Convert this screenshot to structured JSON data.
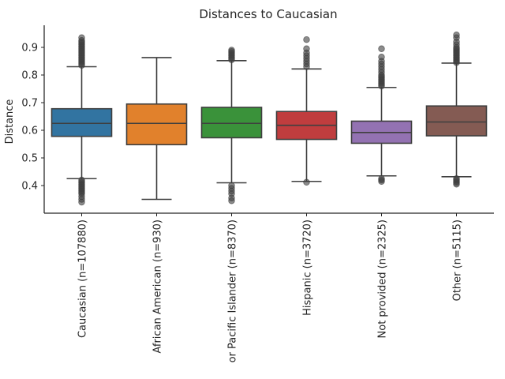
{
  "chart_data": {
    "type": "box",
    "title": "Distances to Caucasian",
    "xlabel": "",
    "ylabel": "Distance",
    "ylim": [
      0.3,
      0.98
    ],
    "yticks": [
      0.4,
      0.5,
      0.6,
      0.7,
      0.8,
      0.9
    ],
    "ytick_labels": [
      "0.4",
      "0.5",
      "0.6",
      "0.7",
      "0.8",
      "0.9"
    ],
    "grid": false,
    "legend": "none",
    "categories": [
      "Caucasian (n=107880)",
      "African American (n=930)",
      "or Pacific Islander (n=8370)",
      "Hispanic (n=3720)",
      "Not provided (n=2325)",
      "Other (n=5115)"
    ],
    "colors": [
      "#3274a1",
      "#e1812c",
      "#3a923a",
      "#c03d3e",
      "#9372b2",
      "#845b53"
    ],
    "boxes": [
      {
        "whisker_low": 0.425,
        "q1": 0.578,
        "median": 0.625,
        "q3": 0.678,
        "whisker_high": 0.83,
        "outliers_low": [
          0.34,
          0.35,
          0.36,
          0.37,
          0.375,
          0.38,
          0.385,
          0.39,
          0.395,
          0.4,
          0.405,
          0.41,
          0.415,
          0.42
        ],
        "outliers_high": [
          0.835,
          0.84,
          0.845,
          0.85,
          0.855,
          0.86,
          0.865,
          0.87,
          0.875,
          0.88,
          0.885,
          0.89,
          0.895,
          0.9,
          0.905,
          0.91,
          0.915,
          0.92,
          0.925,
          0.935
        ]
      },
      {
        "whisker_low": 0.35,
        "q1": 0.548,
        "median": 0.625,
        "q3": 0.695,
        "whisker_high": 0.863,
        "outliers_low": [],
        "outliers_high": []
      },
      {
        "whisker_low": 0.41,
        "q1": 0.573,
        "median": 0.625,
        "q3": 0.683,
        "whisker_high": 0.852,
        "outliers_low": [
          0.345,
          0.355,
          0.37,
          0.38,
          0.39,
          0.4
        ],
        "outliers_high": [
          0.855,
          0.86,
          0.865,
          0.87,
          0.875,
          0.88,
          0.885,
          0.89
        ]
      },
      {
        "whisker_low": 0.415,
        "q1": 0.567,
        "median": 0.618,
        "q3": 0.668,
        "whisker_high": 0.822,
        "outliers_low": [
          0.412
        ],
        "outliers_high": [
          0.83,
          0.84,
          0.85,
          0.86,
          0.87,
          0.88,
          0.895,
          0.928
        ]
      },
      {
        "whisker_low": 0.435,
        "q1": 0.553,
        "median": 0.592,
        "q3": 0.633,
        "whisker_high": 0.755,
        "outliers_low": [
          0.415,
          0.42,
          0.425
        ],
        "outliers_high": [
          0.76,
          0.765,
          0.77,
          0.775,
          0.78,
          0.785,
          0.79,
          0.795,
          0.8,
          0.81,
          0.82,
          0.83,
          0.84,
          0.85,
          0.865,
          0.895
        ]
      },
      {
        "whisker_low": 0.432,
        "q1": 0.58,
        "median": 0.63,
        "q3": 0.688,
        "whisker_high": 0.843,
        "outliers_low": [
          0.405,
          0.41,
          0.415,
          0.42,
          0.425
        ],
        "outliers_high": [
          0.845,
          0.85,
          0.855,
          0.86,
          0.865,
          0.87,
          0.875,
          0.88,
          0.885,
          0.89,
          0.895,
          0.9,
          0.91,
          0.92,
          0.935,
          0.945
        ]
      }
    ]
  }
}
